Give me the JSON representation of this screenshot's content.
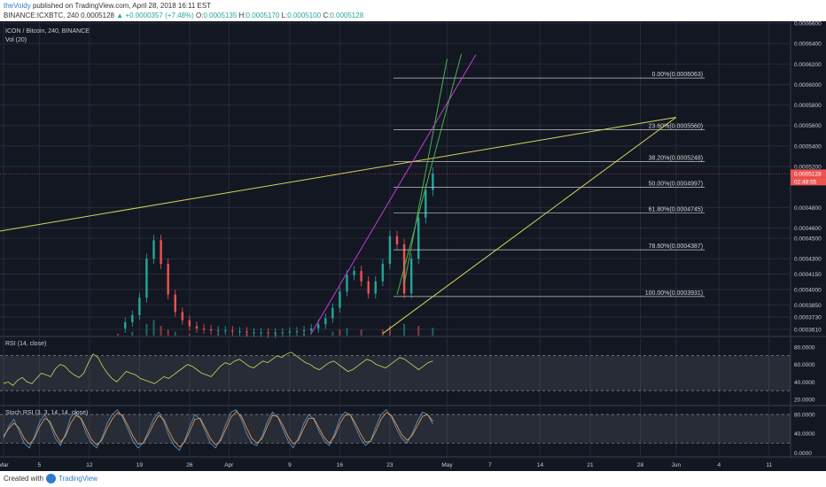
{
  "header": {
    "author": "theVoidy",
    "published": "published on TradingView.com, April 28, 2018 16:11 EST",
    "symbol": "BINANCE:ICXBTC, 240",
    "last": "0.0005128",
    "change": "+0.0000357 (+7.48%)",
    "o_label": "O:",
    "o_value": "0.0005135",
    "h_label": "H:",
    "h_value": "0.0005170",
    "l_label": "L:",
    "l_value": "0.0005100",
    "c_label": "C:",
    "c_value": "0.0005128"
  },
  "footer": {
    "created_with": "Created with",
    "brand": "TradingView"
  },
  "colors": {
    "background": "#131722",
    "grid": "#262b38",
    "up": "#26a69a",
    "down": "#ef5350",
    "fib": "#c8c8c8",
    "yellow_trend": "#d4d45a",
    "magenta_trend": "#c23bd4",
    "green_trend": "#4caf50",
    "rsi_line": "#d4d45a",
    "stoch_k": "#5b9bd5",
    "stoch_d": "#f0a04b"
  },
  "chart_data": [
    {
      "type": "candlestick",
      "title": "ICON / Bitcoin, 240, BINANCE",
      "volume_label": "Vol (20)",
      "ylim": [
        0.000355,
        0.00066
      ],
      "x_ticks": [
        "Mar",
        "5",
        "12",
        "19",
        "26",
        "Apr",
        "9",
        "16",
        "23",
        "May",
        "7",
        "14",
        "21",
        "28",
        "Jun",
        "4",
        "11"
      ],
      "y_ticks": [
        "0.0006600",
        "0.0006400",
        "0.0006200",
        "0.0006000",
        "0.0005800",
        "0.0005600",
        "0.0005400",
        "0.0005200",
        "0.0004800",
        "0.0004600",
        "0.0004500",
        "0.0004300",
        "0.0004150",
        "0.0004000",
        "0.0003850",
        "0.0003730",
        "0.0003610"
      ],
      "price_tags": [
        {
          "label": "0.0005128",
          "value": 0.0005128
        },
        {
          "label": "02:48:55",
          "value": 0.000499
        }
      ],
      "fib_levels": [
        {
          "label": "0.00%(0.0006063)",
          "value": 0.0006063
        },
        {
          "label": "23.60%(0.0005560)",
          "value": 0.000556
        },
        {
          "label": "38.20%(0.0005248)",
          "value": 0.0005248
        },
        {
          "label": "50.00%(0.0004997)",
          "value": 0.0004997
        },
        {
          "label": "61.80%(0.0004745)",
          "value": 0.0004745
        },
        {
          "label": "78.60%(0.0004387)",
          "value": 0.0004387
        },
        {
          "label": "100.00%(0.0003931)",
          "value": 0.0003931
        }
      ],
      "price_series": [
        {
          "day": 16,
          "value": 0.000362
        },
        {
          "day": 17,
          "value": 0.000368
        },
        {
          "day": 18,
          "value": 0.000375
        },
        {
          "day": 19,
          "value": 0.000392
        },
        {
          "day": 20,
          "value": 0.00043
        },
        {
          "day": 21,
          "value": 0.000448
        },
        {
          "day": 22,
          "value": 0.000425
        },
        {
          "day": 23,
          "value": 0.000395
        },
        {
          "day": 24,
          "value": 0.000378
        },
        {
          "day": 25,
          "value": 0.00037
        },
        {
          "day": 26,
          "value": 0.000364
        },
        {
          "day": 27,
          "value": 0.000362
        },
        {
          "day": 28,
          "value": 0.000361
        },
        {
          "day": 29,
          "value": 0.00036
        },
        {
          "day": 30,
          "value": 0.00036
        },
        {
          "day": 31,
          "value": 0.00036
        },
        {
          "day": 32,
          "value": 0.000359
        },
        {
          "day": 33,
          "value": 0.000359
        },
        {
          "day": 34,
          "value": 0.000358
        },
        {
          "day": 35,
          "value": 0.000358
        },
        {
          "day": 36,
          "value": 0.000358
        },
        {
          "day": 37,
          "value": 0.000357
        },
        {
          "day": 38,
          "value": 0.000358
        },
        {
          "day": 39,
          "value": 0.000358
        },
        {
          "day": 40,
          "value": 0.000359
        },
        {
          "day": 41,
          "value": 0.000359
        },
        {
          "day": 42,
          "value": 0.00036
        },
        {
          "day": 43,
          "value": 0.000362
        },
        {
          "day": 44,
          "value": 0.000366
        },
        {
          "day": 45,
          "value": 0.000372
        },
        {
          "day": 46,
          "value": 0.000382
        },
        {
          "day": 47,
          "value": 0.000398
        },
        {
          "day": 48,
          "value": 0.000414
        },
        {
          "day": 49,
          "value": 0.000418
        },
        {
          "day": 50,
          "value": 0.000408
        },
        {
          "day": 51,
          "value": 0.000396
        },
        {
          "day": 52,
          "value": 0.000408
        },
        {
          "day": 53,
          "value": 0.000425
        },
        {
          "day": 54,
          "value": 0.000452
        },
        {
          "day": 55,
          "value": 0.000444
        },
        {
          "day": 56,
          "value": 0.000396
        },
        {
          "day": 57,
          "value": 0.00043
        },
        {
          "day": 58,
          "value": 0.00047
        },
        {
          "day": 59,
          "value": 0.000497
        },
        {
          "day": 60,
          "value": 0.000513
        }
      ],
      "volume": [
        {
          "day": 16,
          "value": 1
        },
        {
          "day": 18,
          "value": 2
        },
        {
          "day": 20,
          "value": 6
        },
        {
          "day": 21,
          "value": 8
        },
        {
          "day": 22,
          "value": 5
        },
        {
          "day": 23,
          "value": 3
        },
        {
          "day": 24,
          "value": 2
        },
        {
          "day": 26,
          "value": 1
        },
        {
          "day": 30,
          "value": 1
        },
        {
          "day": 34,
          "value": 1
        },
        {
          "day": 38,
          "value": 1
        },
        {
          "day": 42,
          "value": 1
        },
        {
          "day": 46,
          "value": 2
        },
        {
          "day": 47,
          "value": 3
        },
        {
          "day": 48,
          "value": 4
        },
        {
          "day": 50,
          "value": 3
        },
        {
          "day": 53,
          "value": 3
        },
        {
          "day": 54,
          "value": 5
        },
        {
          "day": 56,
          "value": 6
        },
        {
          "day": 58,
          "value": 5
        },
        {
          "day": 60,
          "value": 4
        }
      ]
    },
    {
      "type": "line",
      "title": "RSI (14, close)",
      "ylim": [
        15,
        90
      ],
      "y_ticks": [
        "80.0000",
        "60.0000",
        "40.0000",
        "20.0000"
      ],
      "levels": [
        70,
        30
      ],
      "series": [
        {
          "values": [
            38,
            40,
            36,
            42,
            45,
            40,
            38,
            44,
            50,
            48,
            46,
            55,
            60,
            58,
            52,
            48,
            45,
            50,
            62,
            72,
            68,
            58,
            50,
            44,
            40,
            46,
            52,
            50,
            48,
            44,
            42,
            40,
            38,
            42,
            46,
            44,
            48,
            52,
            56,
            60,
            58,
            54,
            50,
            48,
            46,
            52,
            58,
            62,
            60,
            64,
            66,
            62,
            58,
            56,
            60,
            64,
            62,
            66,
            70,
            68,
            72,
            74,
            70,
            66,
            62,
            60,
            56,
            54,
            58,
            62,
            64,
            60,
            56,
            52,
            54,
            58,
            62,
            66,
            64,
            60,
            58,
            56,
            60,
            64,
            68,
            66,
            62,
            58,
            54,
            58,
            62,
            64
          ]
        }
      ]
    },
    {
      "type": "line",
      "title": "Stoch RSI (3, 3, 14, 14, close)",
      "ylim": [
        -5,
        95
      ],
      "y_ticks": [
        "80.0000",
        "40.0000",
        "0.0000"
      ],
      "levels": [
        80,
        20
      ],
      "series": [
        {
          "values": [
            30,
            55,
            70,
            45,
            20,
            10,
            35,
            65,
            80,
            60,
            30,
            15,
            40,
            75,
            85,
            70,
            40,
            20,
            10,
            30,
            60,
            80,
            90,
            75,
            50,
            25,
            10,
            20,
            45,
            70,
            85,
            65,
            35,
            15,
            5,
            25,
            55,
            80,
            70,
            45,
            20,
            10,
            30,
            60,
            85,
            90,
            70,
            40,
            20,
            15,
            35,
            65,
            85,
            75,
            50,
            25,
            10,
            30,
            60,
            80,
            70,
            45,
            25,
            15,
            40,
            70,
            85,
            80,
            55,
            30,
            15,
            25,
            55,
            80,
            90,
            75,
            50,
            30,
            20,
            40,
            65,
            85,
            80,
            60
          ]
        },
        {
          "values": [
            35,
            50,
            62,
            52,
            30,
            18,
            30,
            55,
            72,
            65,
            40,
            22,
            35,
            62,
            78,
            72,
            50,
            28,
            16,
            26,
            50,
            70,
            84,
            78,
            58,
            35,
            18,
            20,
            38,
            60,
            78,
            70,
            45,
            24,
            12,
            22,
            45,
            70,
            72,
            52,
            30,
            16,
            26,
            50,
            75,
            86,
            76,
            52,
            30,
            20,
            30,
            55,
            78,
            76,
            58,
            34,
            18,
            26,
            50,
            72,
            72,
            52,
            32,
            20,
            34,
            60,
            78,
            80,
            62,
            40,
            22,
            24,
            46,
            70,
            84,
            78,
            58,
            38,
            26,
            36,
            56,
            76,
            80,
            66
          ]
        }
      ]
    }
  ]
}
